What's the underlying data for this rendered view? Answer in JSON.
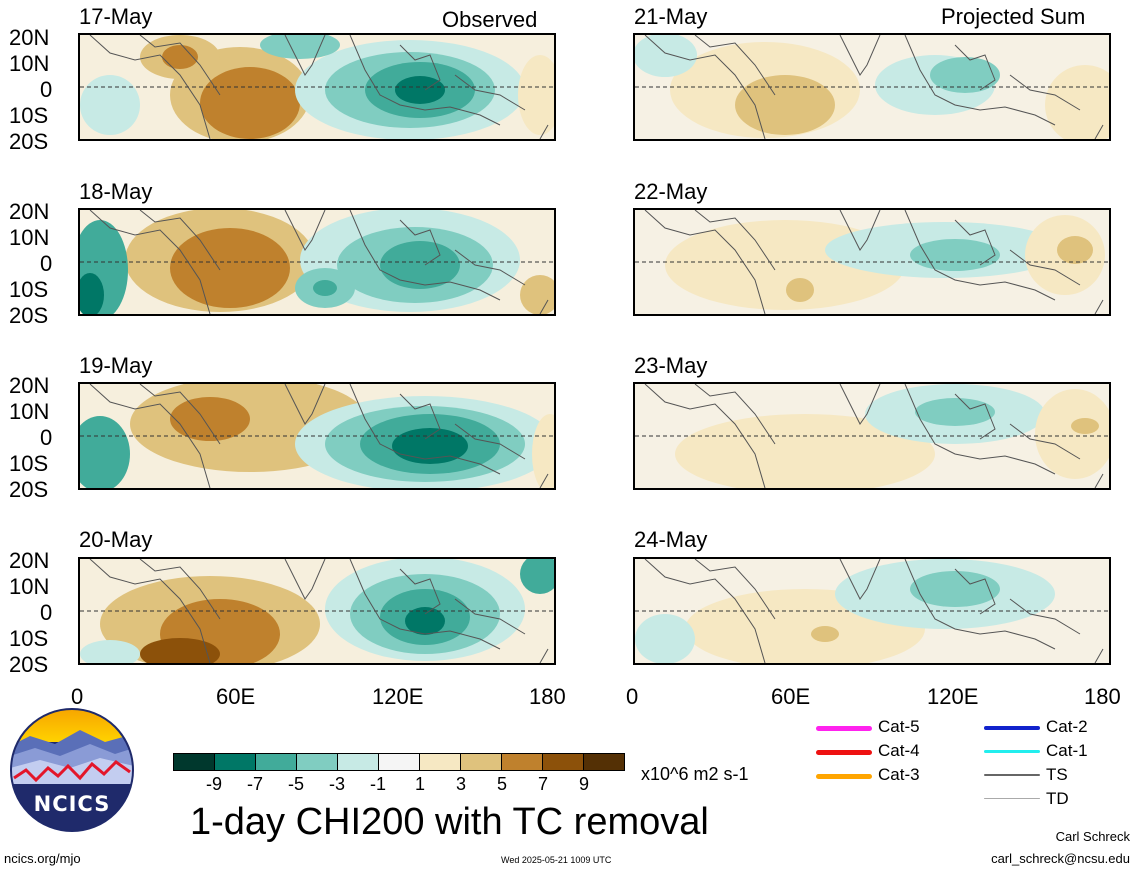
{
  "headers": {
    "left": "Observed",
    "right": "Projected Sum"
  },
  "lat_labels": [
    "20N",
    "10N",
    "0",
    "10S",
    "20S"
  ],
  "lon_labels": [
    "0",
    "60E",
    "120E",
    "180"
  ],
  "panels": {
    "observed": [
      {
        "date": "17-May"
      },
      {
        "date": "18-May"
      },
      {
        "date": "19-May"
      },
      {
        "date": "20-May"
      }
    ],
    "projected": [
      {
        "date": "21-May"
      },
      {
        "date": "22-May"
      },
      {
        "date": "23-May"
      },
      {
        "date": "24-May"
      }
    ]
  },
  "colorbar": {
    "colors": [
      "#00382d",
      "#007766",
      "#41ab9a",
      "#80cdc1",
      "#c7eae5",
      "#f5f5f5",
      "#f6e8c3",
      "#dfc27d",
      "#bf812d",
      "#8c510a",
      "#543005"
    ],
    "labels": [
      "-9",
      "-7",
      "-5",
      "-3",
      "-1",
      "1",
      "3",
      "5",
      "7",
      "9"
    ],
    "units": "x10^6 m2 s-1"
  },
  "title": "1-day CHI200 with TC removal",
  "legend": [
    {
      "label": "Cat-5",
      "color": "#ff22ee"
    },
    {
      "label": "Cat-4",
      "color": "#ee1111"
    },
    {
      "label": "Cat-3",
      "color": "#ffa500"
    },
    {
      "label": "Cat-2",
      "color": "#1122cc"
    },
    {
      "label": "Cat-1",
      "color": "#22eeee"
    },
    {
      "label": "TS",
      "color": "#666666"
    },
    {
      "label": "TD",
      "color": "#aaaaaa"
    }
  ],
  "logo": {
    "text": "NCICS"
  },
  "footer": {
    "site": "ncics.org/mjo",
    "timestamp": "Wed 2025-05-21 1009 UTC",
    "author": "Carl Schreck",
    "email": "carl_schreck@ncsu.edu"
  }
}
